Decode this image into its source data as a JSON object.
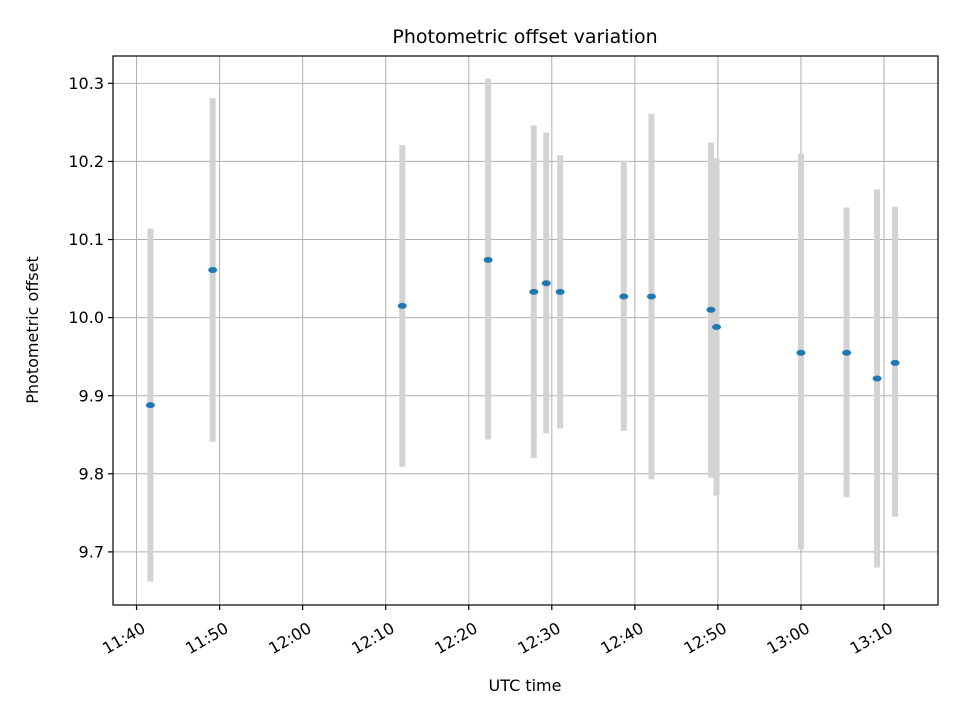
{
  "chart_data": {
    "type": "scatter",
    "title": "Photometric offset variation",
    "xlabel": "UTC time",
    "ylabel": "Photometric offset",
    "x_ticks": [
      "11:40",
      "11:50",
      "12:00",
      "12:10",
      "12:20",
      "12:30",
      "12:40",
      "12:50",
      "13:00",
      "13:10"
    ],
    "y_ticks": [
      "9.7",
      "9.8",
      "9.9",
      "10.0",
      "10.1",
      "10.2",
      "10.3"
    ],
    "xlim": [
      "11:37:10",
      "13:16:30"
    ],
    "ylim": [
      9.632,
      10.335
    ],
    "grid": true,
    "colors": {
      "marker": "#1f77b4",
      "errorbar": "#d3d3d3",
      "grid": "#b0b0b0"
    },
    "points": [
      {
        "x": "11:41:40",
        "y": 9.888,
        "ylow": 9.662,
        "yhigh": 10.114
      },
      {
        "x": "11:49:10",
        "y": 10.061,
        "ylow": 9.841,
        "yhigh": 10.281
      },
      {
        "x": "12:12:00",
        "y": 10.015,
        "ylow": 9.809,
        "yhigh": 10.221
      },
      {
        "x": "12:22:20",
        "y": 10.074,
        "ylow": 9.844,
        "yhigh": 10.306
      },
      {
        "x": "12:27:50",
        "y": 10.033,
        "ylow": 9.82,
        "yhigh": 10.246
      },
      {
        "x": "12:29:20",
        "y": 10.044,
        "ylow": 9.852,
        "yhigh": 10.237
      },
      {
        "x": "12:31:00",
        "y": 10.033,
        "ylow": 9.858,
        "yhigh": 10.208
      },
      {
        "x": "12:38:40",
        "y": 10.027,
        "ylow": 9.855,
        "yhigh": 10.201
      },
      {
        "x": "12:42:00",
        "y": 10.027,
        "ylow": 9.793,
        "yhigh": 10.261
      },
      {
        "x": "12:49:10",
        "y": 10.01,
        "ylow": 9.795,
        "yhigh": 10.224
      },
      {
        "x": "12:49:50",
        "y": 9.988,
        "ylow": 9.772,
        "yhigh": 10.204
      },
      {
        "x": "13:00:00",
        "y": 9.955,
        "ylow": 9.703,
        "yhigh": 10.21
      },
      {
        "x": "13:05:30",
        "y": 9.955,
        "ylow": 9.77,
        "yhigh": 10.141
      },
      {
        "x": "13:09:10",
        "y": 9.922,
        "ylow": 9.68,
        "yhigh": 10.164
      },
      {
        "x": "13:11:20",
        "y": 9.942,
        "ylow": 9.745,
        "yhigh": 10.142
      }
    ]
  }
}
